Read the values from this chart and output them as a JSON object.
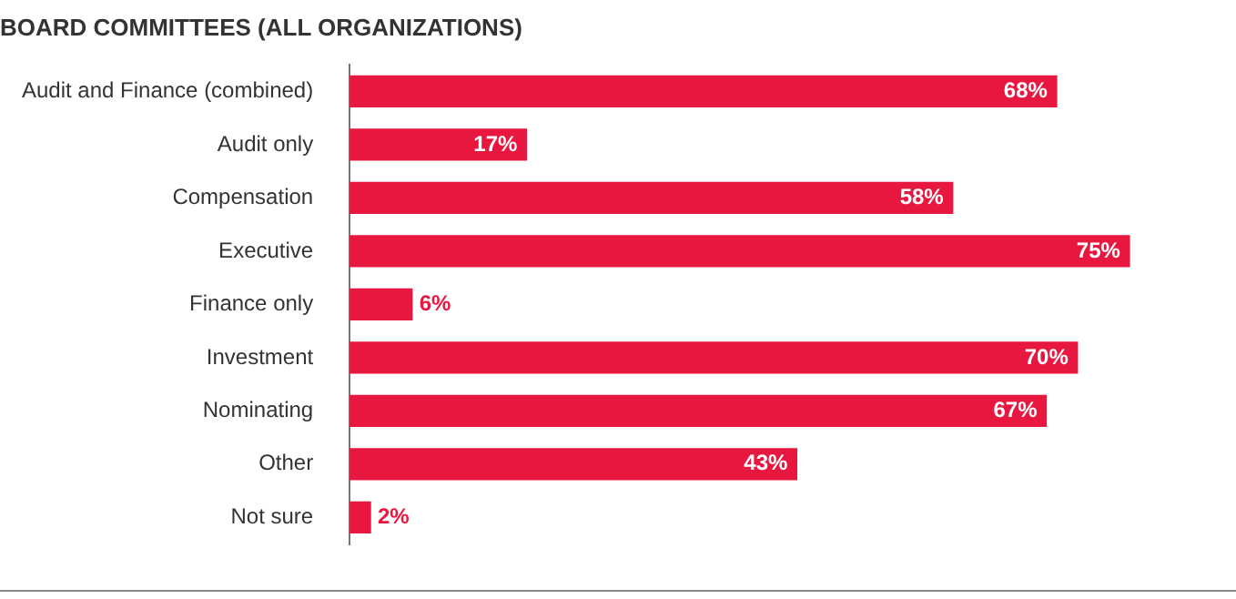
{
  "chart_data": {
    "type": "bar",
    "orientation": "horizontal",
    "title": "BOARD COMMITTEES (ALL ORGANIZATIONS)",
    "categories": [
      "Audit and Finance (combined)",
      "Audit only",
      "Compensation",
      "Executive",
      "Finance only",
      "Investment",
      "Nominating",
      "Other",
      "Not sure"
    ],
    "values": [
      68,
      17,
      58,
      75,
      6,
      70,
      67,
      43,
      2
    ],
    "value_labels": [
      "68%",
      "17%",
      "58%",
      "75%",
      "6%",
      "70%",
      "67%",
      "43%",
      "2%"
    ],
    "color": "#e8173f",
    "grid": false,
    "legend": false
  }
}
